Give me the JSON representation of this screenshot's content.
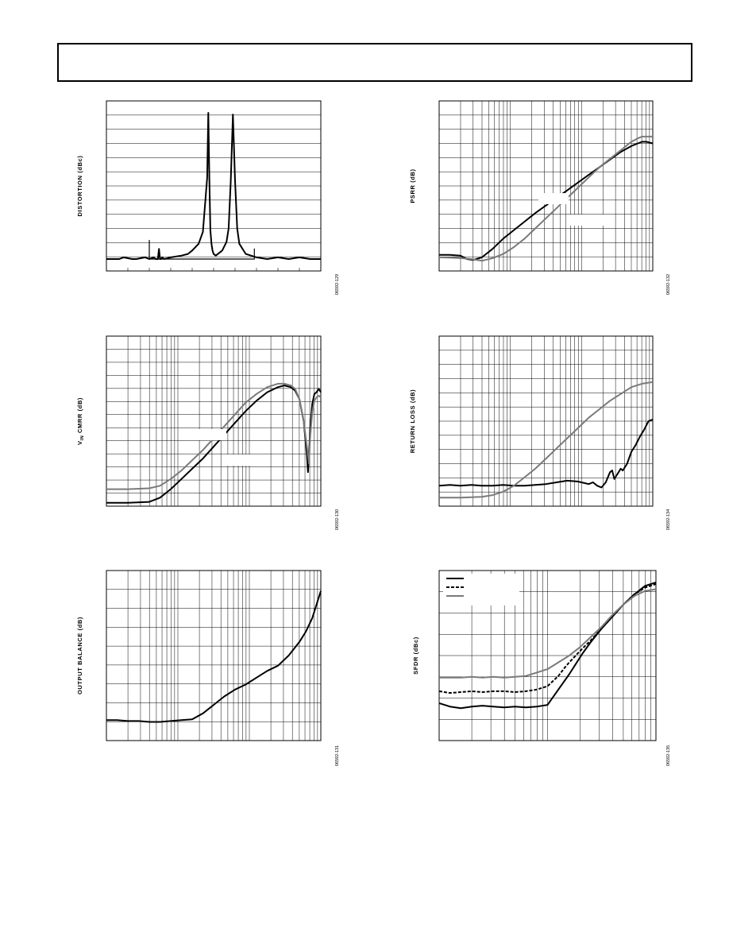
{
  "page": {
    "header": ""
  },
  "chart_data": [
    {
      "id": "distortion",
      "type": "line",
      "ylabel": "DISTORTION (dBc)",
      "fig_id": "06592-129",
      "x_scale": "linear",
      "x_minor_ticks": 10,
      "y_divisions": 12,
      "series": [
        {
          "name": "",
          "color": "#000000",
          "x": [
            0.0,
            0.06,
            0.08,
            0.12,
            0.14,
            0.18,
            0.2,
            0.22,
            0.23,
            0.24,
            0.245,
            0.25,
            0.255,
            0.26,
            0.27,
            0.3,
            0.35,
            0.38,
            0.4,
            0.43,
            0.45,
            0.47,
            0.475,
            0.48,
            0.485,
            0.49,
            0.495,
            0.5,
            0.51,
            0.52,
            0.54,
            0.56,
            0.57,
            0.58,
            0.59,
            0.6,
            0.61,
            0.62,
            0.65,
            0.7,
            0.75,
            0.8,
            0.85,
            0.9,
            0.95,
            1.0
          ],
          "y": [
            0.07,
            0.07,
            0.08,
            0.07,
            0.07,
            0.08,
            0.07,
            0.08,
            0.07,
            0.07,
            0.13,
            0.07,
            0.07,
            0.08,
            0.07,
            0.08,
            0.09,
            0.1,
            0.12,
            0.16,
            0.23,
            0.55,
            0.93,
            0.55,
            0.24,
            0.16,
            0.12,
            0.1,
            0.09,
            0.1,
            0.12,
            0.17,
            0.25,
            0.53,
            0.92,
            0.53,
            0.25,
            0.16,
            0.1,
            0.08,
            0.07,
            0.08,
            0.07,
            0.08,
            0.07,
            0.07
          ]
        },
        {
          "name": "",
          "color": "#000000",
          "note": "spurs",
          "x": [
            0.2,
            0.2,
            0.2,
            0.69,
            0.69,
            0.69
          ],
          "y": [
            0.07,
            0.18,
            0.07,
            0.07,
            0.13,
            0.07
          ]
        }
      ]
    },
    {
      "id": "psrr",
      "type": "line",
      "ylabel": "PSRR (dB)",
      "fig_id": "06592-132",
      "x_scale": "log",
      "x_decades": 3,
      "y_divisions": 12,
      "annotations": [
        "",
        ""
      ],
      "series": [
        {
          "name": "",
          "color": "#000000",
          "x": [
            0,
            0.05,
            0.1,
            0.13,
            0.16,
            0.2,
            0.25,
            0.3,
            0.35,
            0.4,
            0.45,
            0.5,
            0.55,
            0.6,
            0.65,
            0.7,
            0.75,
            0.8,
            0.85,
            0.9,
            0.93,
            0.95,
            0.97,
            1.0
          ],
          "y": [
            0.095,
            0.095,
            0.09,
            0.07,
            0.065,
            0.08,
            0.13,
            0.19,
            0.24,
            0.29,
            0.34,
            0.385,
            0.43,
            0.475,
            0.52,
            0.565,
            0.61,
            0.655,
            0.7,
            0.735,
            0.75,
            0.76,
            0.76,
            0.75
          ]
        },
        {
          "name": "",
          "color": "#7a7a7a",
          "x": [
            0,
            0.05,
            0.1,
            0.15,
            0.2,
            0.25,
            0.3,
            0.35,
            0.4,
            0.45,
            0.5,
            0.55,
            0.6,
            0.65,
            0.7,
            0.75,
            0.8,
            0.85,
            0.9,
            0.93,
            0.95,
            0.98,
            1.0
          ],
          "y": [
            0.08,
            0.078,
            0.075,
            0.07,
            0.06,
            0.075,
            0.1,
            0.14,
            0.19,
            0.25,
            0.31,
            0.37,
            0.43,
            0.49,
            0.55,
            0.61,
            0.66,
            0.71,
            0.76,
            0.78,
            0.79,
            0.79,
            0.79
          ]
        }
      ]
    },
    {
      "id": "vin-cmrr",
      "type": "line",
      "ylabel": "V",
      "ylabel_sub": "IN",
      "ylabel_rest": " CMRR (dB)",
      "fig_id": "06592-130",
      "x_scale": "log",
      "x_decades": 3,
      "y_divisions": 13,
      "annotations": [
        "",
        ""
      ],
      "series": [
        {
          "name": "",
          "color": "#000000",
          "x": [
            0,
            0.1,
            0.2,
            0.25,
            0.3,
            0.35,
            0.4,
            0.45,
            0.5,
            0.55,
            0.6,
            0.65,
            0.7,
            0.75,
            0.8,
            0.83,
            0.86,
            0.88,
            0.9,
            0.92,
            0.935,
            0.94,
            0.945,
            0.95,
            0.96,
            0.97,
            0.98,
            0.99,
            1.0
          ],
          "y": [
            0.02,
            0.02,
            0.025,
            0.05,
            0.1,
            0.16,
            0.22,
            0.28,
            0.35,
            0.42,
            0.49,
            0.56,
            0.62,
            0.67,
            0.7,
            0.71,
            0.7,
            0.68,
            0.63,
            0.5,
            0.3,
            0.2,
            0.3,
            0.45,
            0.6,
            0.66,
            0.67,
            0.69,
            0.67
          ]
        },
        {
          "name": "",
          "color": "#7a7a7a",
          "x": [
            0,
            0.1,
            0.2,
            0.25,
            0.3,
            0.35,
            0.4,
            0.45,
            0.5,
            0.55,
            0.6,
            0.65,
            0.7,
            0.75,
            0.8,
            0.83,
            0.86,
            0.88,
            0.9,
            0.92,
            0.935,
            0.945,
            0.95,
            0.96,
            0.97,
            0.98,
            0.99,
            1.0
          ],
          "y": [
            0.1,
            0.1,
            0.105,
            0.12,
            0.16,
            0.21,
            0.27,
            0.33,
            0.4,
            0.47,
            0.54,
            0.61,
            0.66,
            0.7,
            0.72,
            0.72,
            0.71,
            0.69,
            0.63,
            0.5,
            0.35,
            0.25,
            0.4,
            0.55,
            0.62,
            0.64,
            0.65,
            0.64
          ]
        }
      ]
    },
    {
      "id": "return-loss",
      "type": "line",
      "ylabel": "RETURN LOSS (dB)",
      "fig_id": "06592-134",
      "x_scale": "log",
      "x_decades": 3,
      "y_divisions": 12,
      "series": [
        {
          "name": "",
          "color": "#000000",
          "x": [
            0,
            0.05,
            0.1,
            0.15,
            0.2,
            0.25,
            0.3,
            0.35,
            0.4,
            0.45,
            0.5,
            0.55,
            0.6,
            0.65,
            0.7,
            0.72,
            0.74,
            0.76,
            0.78,
            0.8,
            0.81,
            0.82,
            0.83,
            0.84,
            0.85,
            0.86,
            0.88,
            0.9,
            0.92,
            0.94,
            0.96,
            0.98,
            1.0
          ],
          "y": [
            0.12,
            0.125,
            0.12,
            0.125,
            0.12,
            0.12,
            0.125,
            0.12,
            0.12,
            0.125,
            0.13,
            0.14,
            0.15,
            0.145,
            0.13,
            0.14,
            0.12,
            0.11,
            0.14,
            0.2,
            0.21,
            0.16,
            0.18,
            0.2,
            0.22,
            0.21,
            0.25,
            0.32,
            0.36,
            0.41,
            0.45,
            0.5,
            0.51
          ]
        },
        {
          "name": "",
          "color": "#7a7a7a",
          "x": [
            0,
            0.1,
            0.2,
            0.25,
            0.3,
            0.35,
            0.4,
            0.45,
            0.5,
            0.55,
            0.6,
            0.65,
            0.7,
            0.75,
            0.8,
            0.85,
            0.9,
            0.95,
            1.0
          ],
          "y": [
            0.05,
            0.05,
            0.055,
            0.065,
            0.085,
            0.12,
            0.17,
            0.22,
            0.28,
            0.34,
            0.4,
            0.46,
            0.52,
            0.57,
            0.62,
            0.66,
            0.7,
            0.72,
            0.73
          ]
        }
      ]
    },
    {
      "id": "output-balance",
      "type": "line",
      "ylabel": "OUTPUT BALANCE (dB)",
      "fig_id": "06592-131",
      "x_scale": "log",
      "x_decades": 3,
      "y_divisions": 9,
      "series": [
        {
          "name": "",
          "color": "#000000",
          "x": [
            0,
            0.05,
            0.1,
            0.15,
            0.2,
            0.25,
            0.3,
            0.35,
            0.4,
            0.45,
            0.5,
            0.55,
            0.6,
            0.65,
            0.7,
            0.75,
            0.8,
            0.85,
            0.9,
            0.93,
            0.96,
            0.98,
            1.0
          ],
          "y": [
            0.12,
            0.12,
            0.115,
            0.115,
            0.11,
            0.11,
            0.115,
            0.12,
            0.125,
            0.16,
            0.21,
            0.26,
            0.3,
            0.33,
            0.37,
            0.41,
            0.44,
            0.5,
            0.58,
            0.64,
            0.72,
            0.8,
            0.88
          ]
        }
      ]
    },
    {
      "id": "sfdr",
      "type": "line",
      "ylabel": "SFDR (dBc)",
      "fig_id": "06592-135",
      "x_scale": "log",
      "x_decades": 2,
      "y_divisions": 8,
      "legend": {
        "placement": "top-left",
        "entries": [
          "",
          "",
          ""
        ]
      },
      "series": [
        {
          "name": "",
          "color": "#000000",
          "dash": "",
          "x": [
            0,
            0.05,
            0.1,
            0.15,
            0.2,
            0.25,
            0.3,
            0.35,
            0.4,
            0.45,
            0.5,
            0.55,
            0.6,
            0.63,
            0.66,
            0.7,
            0.75,
            0.8,
            0.85,
            0.9,
            0.95,
            1.0
          ],
          "y": [
            0.22,
            0.2,
            0.19,
            0.2,
            0.205,
            0.2,
            0.195,
            0.2,
            0.195,
            0.2,
            0.21,
            0.3,
            0.39,
            0.45,
            0.51,
            0.58,
            0.66,
            0.73,
            0.8,
            0.86,
            0.91,
            0.93
          ]
        },
        {
          "name": "",
          "color": "#000000",
          "dash": "4,2",
          "x": [
            0,
            0.05,
            0.1,
            0.15,
            0.2,
            0.25,
            0.3,
            0.35,
            0.4,
            0.45,
            0.5,
            0.55,
            0.58,
            0.6,
            0.63,
            0.66,
            0.7,
            0.75,
            0.8,
            0.85,
            0.9,
            0.95,
            1.0
          ],
          "y": [
            0.29,
            0.28,
            0.285,
            0.29,
            0.285,
            0.29,
            0.29,
            0.285,
            0.29,
            0.3,
            0.32,
            0.38,
            0.43,
            0.46,
            0.5,
            0.54,
            0.59,
            0.66,
            0.73,
            0.8,
            0.86,
            0.9,
            0.92
          ]
        },
        {
          "name": "",
          "color": "#7a7a7a",
          "dash": "",
          "x": [
            0,
            0.05,
            0.1,
            0.15,
            0.2,
            0.25,
            0.3,
            0.35,
            0.4,
            0.45,
            0.5,
            0.55,
            0.6,
            0.65,
            0.7,
            0.75,
            0.8,
            0.85,
            0.9,
            0.95,
            1.0
          ],
          "y": [
            0.37,
            0.37,
            0.37,
            0.375,
            0.37,
            0.375,
            0.37,
            0.375,
            0.38,
            0.4,
            0.42,
            0.46,
            0.5,
            0.55,
            0.61,
            0.67,
            0.74,
            0.8,
            0.85,
            0.88,
            0.89
          ]
        }
      ]
    }
  ]
}
